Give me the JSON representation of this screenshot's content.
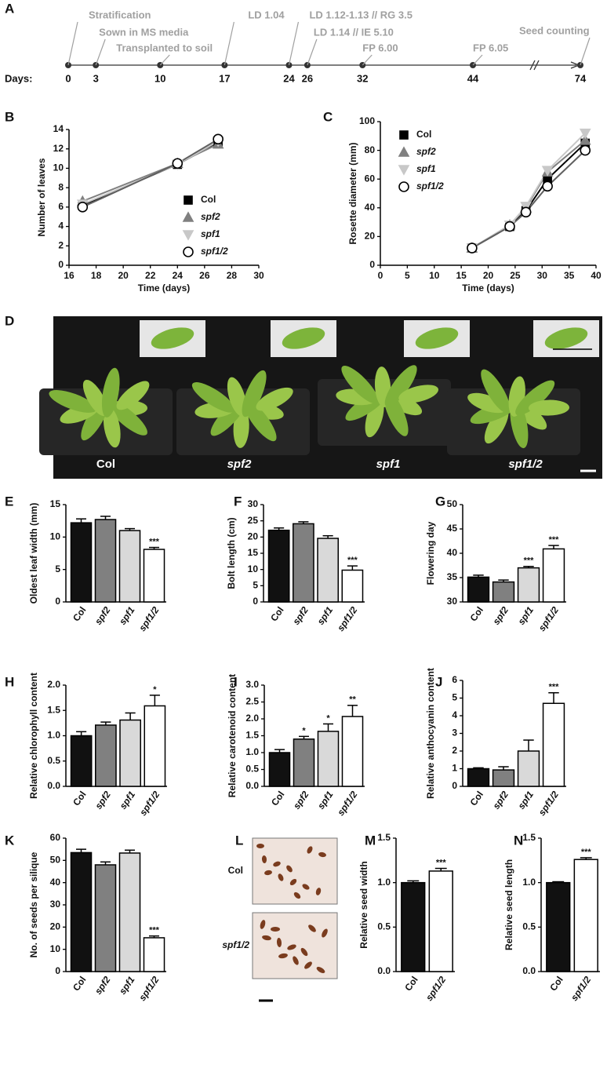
{
  "timeline": {
    "panel": "A",
    "days_label": "Days:",
    "days": [
      0,
      3,
      10,
      17,
      24,
      26,
      32,
      44,
      74
    ],
    "events": [
      {
        "label": "Stratification",
        "day": 0
      },
      {
        "label": "Sown in MS media",
        "day": 3
      },
      {
        "label": "Transplanted to soil",
        "day": 10
      },
      {
        "label": "LD 1.04",
        "day": 17
      },
      {
        "label": "LD 1.12-1.13 // RG 3.5",
        "day": 24
      },
      {
        "label": "LD 1.14 // IE 5.10",
        "day": 26
      },
      {
        "label": "FP 6.00",
        "day": 32
      },
      {
        "label": "FP 6.05",
        "day": 44
      },
      {
        "label": "Seed counting",
        "day": 74
      }
    ]
  },
  "photo_d": {
    "panel": "D",
    "labels": [
      "Col",
      "spf2",
      "spf1",
      "spf1/2"
    ]
  },
  "photo_l": {
    "panel": "L",
    "labels": [
      "Col",
      "spf1/2"
    ]
  },
  "chart_data": [
    {
      "panel": "B",
      "type": "line",
      "x_label": "Time (days)",
      "y_label": "Number of leaves",
      "x": [
        17,
        24,
        27
      ],
      "xlim": [
        16,
        30
      ],
      "xticks": [
        16,
        18,
        20,
        22,
        24,
        26,
        28,
        30
      ],
      "ylim": [
        0,
        14
      ],
      "yticks": [
        0,
        2,
        4,
        6,
        8,
        10,
        12,
        14
      ],
      "series": [
        {
          "name": "Col",
          "color": "#000000",
          "fill": "#000000",
          "marker": "square",
          "values": [
            6.2,
            10.4,
            12.7
          ]
        },
        {
          "name": "spf2",
          "color": "#808080",
          "fill": "#808080",
          "marker": "triangle",
          "values": [
            6.6,
            10.5,
            12.5
          ]
        },
        {
          "name": "spf1",
          "color": "#c8c8c8",
          "fill": "#c8c8c8",
          "marker": "inverted-triangle",
          "values": [
            6.3,
            10.4,
            12.8
          ]
        },
        {
          "name": "spf1/2",
          "color": "#606060",
          "fill": "#ffffff",
          "marker": "circle",
          "values": [
            6.0,
            10.5,
            13.0
          ]
        }
      ]
    },
    {
      "panel": "C",
      "type": "line",
      "x_label": "Time (days)",
      "y_label": "Rosette diameter (mm)",
      "x": [
        17,
        24,
        27,
        31,
        38
      ],
      "xlim": [
        0,
        40
      ],
      "xticks": [
        0,
        5,
        10,
        15,
        20,
        25,
        30,
        35,
        40
      ],
      "ylim": [
        0,
        100
      ],
      "yticks": [
        0,
        20,
        40,
        60,
        80,
        100
      ],
      "series": [
        {
          "name": "Col",
          "color": "#000000",
          "fill": "#000000",
          "marker": "square",
          "values": [
            12,
            27,
            38,
            60,
            85
          ]
        },
        {
          "name": "spf2",
          "color": "#808080",
          "fill": "#808080",
          "marker": "triangle",
          "values": [
            12,
            28,
            40,
            65,
            87
          ]
        },
        {
          "name": "spf1",
          "color": "#c8c8c8",
          "fill": "#c8c8c8",
          "marker": "inverted-triangle",
          "values": [
            12,
            28,
            41,
            66,
            92
          ]
        },
        {
          "name": "spf1/2",
          "color": "#606060",
          "fill": "#ffffff",
          "marker": "circle",
          "values": [
            12,
            27,
            37,
            55,
            80
          ]
        }
      ]
    },
    {
      "panel": "E",
      "type": "bar",
      "y_label": "Oldest leaf width (mm)",
      "categories": [
        "Col",
        "spf2",
        "spf1",
        "spf1/2"
      ],
      "colors": [
        "#111111",
        "#808080",
        "#d9d9d9",
        "#ffffff"
      ],
      "values": [
        12.2,
        12.7,
        11.0,
        8.1
      ],
      "errors": [
        0.6,
        0.5,
        0.3,
        0.3
      ],
      "significance": [
        null,
        null,
        null,
        "***"
      ],
      "ylim": [
        0,
        15
      ],
      "yticks": [
        0,
        5,
        10,
        15
      ]
    },
    {
      "panel": "F",
      "type": "bar",
      "y_label": "Bolt length (cm)",
      "categories": [
        "Col",
        "spf2",
        "spf1",
        "spf1/2"
      ],
      "colors": [
        "#111111",
        "#808080",
        "#d9d9d9",
        "#ffffff"
      ],
      "values": [
        22.1,
        24.1,
        19.6,
        9.8
      ],
      "errors": [
        0.7,
        0.6,
        0.8,
        1.3
      ],
      "significance": [
        null,
        null,
        null,
        "***"
      ],
      "ylim": [
        0,
        30
      ],
      "yticks": [
        0,
        5,
        10,
        15,
        20,
        25,
        30
      ]
    },
    {
      "panel": "G",
      "type": "bar",
      "y_label": "Flowering day",
      "categories": [
        "Col",
        "spf2",
        "spf1",
        "spf1/2"
      ],
      "colors": [
        "#111111",
        "#808080",
        "#d9d9d9",
        "#ffffff"
      ],
      "values": [
        35.1,
        34.1,
        37.0,
        40.9
      ],
      "errors": [
        0.4,
        0.4,
        0.3,
        0.7
      ],
      "significance": [
        null,
        null,
        "***",
        "***"
      ],
      "ylim": [
        30,
        50
      ],
      "yticks": [
        30,
        35,
        40,
        45,
        50
      ]
    },
    {
      "panel": "H",
      "type": "bar",
      "y_label": "Relative chlorophyll content",
      "categories": [
        "Col",
        "spf2",
        "spf1",
        "spf1/2"
      ],
      "colors": [
        "#111111",
        "#808080",
        "#d9d9d9",
        "#ffffff"
      ],
      "values": [
        1.0,
        1.21,
        1.31,
        1.59
      ],
      "errors": [
        0.08,
        0.06,
        0.14,
        0.21
      ],
      "significance": [
        null,
        null,
        null,
        "*"
      ],
      "ylim": [
        0,
        2
      ],
      "yticks": [
        {
          "value": 0,
          "label": "0.0"
        },
        0.5,
        {
          "value": 1,
          "label": "1.0"
        },
        1.5,
        {
          "value": 2,
          "label": "2.0"
        }
      ]
    },
    {
      "panel": "I",
      "type": "bar",
      "y_label": "Relative carotenoid content",
      "categories": [
        "Col",
        "spf2",
        "spf1",
        "spf1/2"
      ],
      "colors": [
        "#111111",
        "#808080",
        "#d9d9d9",
        "#ffffff"
      ],
      "values": [
        1.0,
        1.4,
        1.63,
        2.07
      ],
      "errors": [
        0.09,
        0.08,
        0.22,
        0.33
      ],
      "significance": [
        null,
        "*",
        "*",
        "**"
      ],
      "ylim": [
        0,
        3
      ],
      "yticks": [
        {
          "value": 0,
          "label": "0.0"
        },
        0.5,
        {
          "value": 1,
          "label": "1.0"
        },
        1.5,
        {
          "value": 2,
          "label": "2.0"
        },
        2.5,
        {
          "value": 3,
          "label": "3.0"
        }
      ]
    },
    {
      "panel": "J",
      "type": "bar",
      "y_label": "Relative anthocyanin content",
      "categories": [
        "Col",
        "spf2",
        "spf1",
        "spf1/2"
      ],
      "colors": [
        "#111111",
        "#808080",
        "#d9d9d9",
        "#ffffff"
      ],
      "values": [
        1.0,
        0.93,
        2.0,
        4.7
      ],
      "errors": [
        0.05,
        0.18,
        0.62,
        0.6
      ],
      "significance": [
        null,
        null,
        null,
        "***"
      ],
      "ylim": [
        0,
        6
      ],
      "yticks": [
        0,
        1,
        2,
        3,
        4,
        5,
        6
      ]
    },
    {
      "panel": "K",
      "type": "bar",
      "y_label": "No. of seeds per silique",
      "categories": [
        "Col",
        "spf2",
        "spf1",
        "spf1/2"
      ],
      "colors": [
        "#111111",
        "#808080",
        "#d9d9d9",
        "#ffffff"
      ],
      "values": [
        53.5,
        48,
        53.3,
        15.2
      ],
      "errors": [
        1.5,
        1.3,
        1.3,
        0.8
      ],
      "significance": [
        null,
        null,
        null,
        "***"
      ],
      "ylim": [
        0,
        60
      ],
      "yticks": [
        0,
        10,
        20,
        30,
        40,
        50,
        60
      ]
    },
    {
      "panel": "M",
      "type": "bar",
      "y_label": "Relative seed width",
      "categories": [
        "Col",
        "spf1/2"
      ],
      "colors": [
        "#111111",
        "#ffffff"
      ],
      "values": [
        1.0,
        1.13
      ],
      "errors": [
        0.02,
        0.03
      ],
      "significance": [
        null,
        "***"
      ],
      "ylim": [
        0,
        1.5
      ],
      "yticks": [
        {
          "value": 0,
          "label": "0.0"
        },
        0.5,
        {
          "value": 1,
          "label": "1.0"
        },
        1.5
      ]
    },
    {
      "panel": "N",
      "type": "bar",
      "y_label": "Relative seed length",
      "categories": [
        "Col",
        "spf1/2"
      ],
      "colors": [
        "#111111",
        "#ffffff"
      ],
      "values": [
        1.0,
        1.26
      ],
      "errors": [
        0.01,
        0.02
      ],
      "significance": [
        null,
        "***"
      ],
      "ylim": [
        0,
        1.5
      ],
      "yticks": [
        {
          "value": 0,
          "label": "0.0"
        },
        0.5,
        {
          "value": 1,
          "label": "1.0"
        },
        1.5
      ]
    }
  ]
}
